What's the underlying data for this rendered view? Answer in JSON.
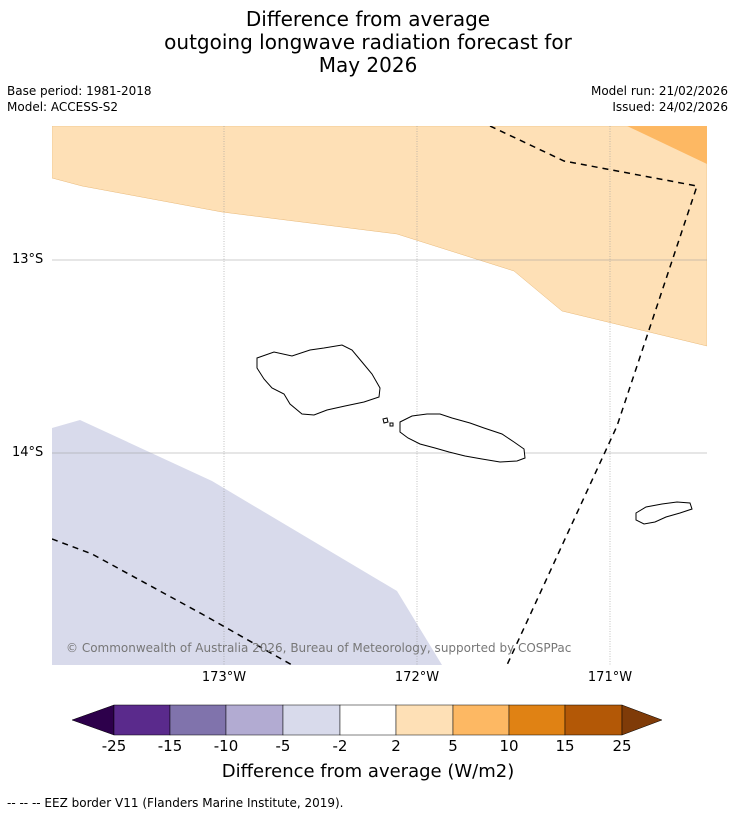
{
  "title": {
    "line1": "Difference from average",
    "line2": "outgoing longwave radiation forecast for",
    "line3": "May 2026"
  },
  "meta": {
    "base_period": "Base period: 1981-2018",
    "model": "Model: ACCESS-S2",
    "model_run": "Model run: 21/02/2026",
    "issued": "Issued: 24/02/2026"
  },
  "map": {
    "lat_labels": [
      "13°S",
      "14°S"
    ],
    "lon_labels": [
      "173°W",
      "172°W",
      "171°W"
    ],
    "copyright": "© Commonwealth of Australia 2026, Bureau of Meteorology, supported by COSPPac"
  },
  "colorbar": {
    "title": "Difference from average (W/m2)",
    "ticks": [
      "-25",
      "-15",
      "-10",
      "-5",
      "-2",
      "2",
      "5",
      "10",
      "15",
      "25"
    ],
    "colors": [
      "#2d004b",
      "#5a2a8c",
      "#8073ac",
      "#b2abd2",
      "#d8daeb",
      "#ffffff",
      "#fee0b6",
      "#fdb863",
      "#e08214",
      "#b35806",
      "#7f3b08"
    ]
  },
  "legend": {
    "eez": "--  --  -- EEZ border V11 (Flanders Marine Institute, 2019)."
  }
}
